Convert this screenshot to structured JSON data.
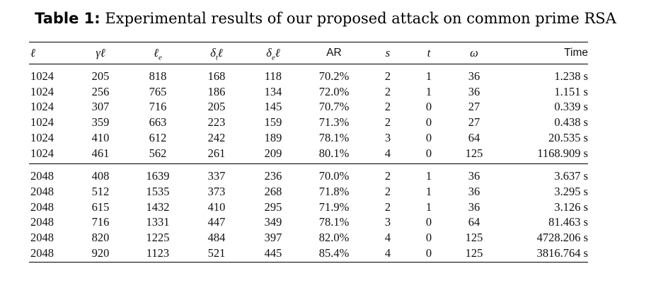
{
  "caption": {
    "label": "Table 1:",
    "text": "Experimental results of our proposed attack on common prime RSA"
  },
  "table": {
    "headers": [
      "ℓ",
      "γℓ",
      "ℓ",
      "δ",
      "δ",
      "AR",
      "s",
      "t",
      "ω",
      "Time"
    ],
    "header_subscripts": [
      "",
      "",
      "e",
      "t",
      "e",
      "",
      "",
      "",
      "",
      ""
    ],
    "header_suffix": [
      "",
      "",
      "",
      "ℓ",
      "ℓ",
      "",
      "",
      "",
      "",
      ""
    ],
    "groups": [
      [
        [
          "1024",
          "205",
          "818",
          "168",
          "118",
          "70.2%",
          "2",
          "1",
          "36",
          "1.238 s"
        ],
        [
          "1024",
          "256",
          "765",
          "186",
          "134",
          "72.0%",
          "2",
          "1",
          "36",
          "1.151 s"
        ],
        [
          "1024",
          "307",
          "716",
          "205",
          "145",
          "70.7%",
          "2",
          "0",
          "27",
          "0.339 s"
        ],
        [
          "1024",
          "359",
          "663",
          "223",
          "159",
          "71.3%",
          "2",
          "0",
          "27",
          "0.438 s"
        ],
        [
          "1024",
          "410",
          "612",
          "242",
          "189",
          "78.1%",
          "3",
          "0",
          "64",
          "20.535 s"
        ],
        [
          "1024",
          "461",
          "562",
          "261",
          "209",
          "80.1%",
          "4",
          "0",
          "125",
          "1168.909 s"
        ]
      ],
      [
        [
          "2048",
          "408",
          "1639",
          "337",
          "236",
          "70.0%",
          "2",
          "1",
          "36",
          "3.637 s"
        ],
        [
          "2048",
          "512",
          "1535",
          "373",
          "268",
          "71.8%",
          "2",
          "1",
          "36",
          "3.295 s"
        ],
        [
          "2048",
          "615",
          "1432",
          "410",
          "295",
          "71.9%",
          "2",
          "1",
          "36",
          "3.126 s"
        ],
        [
          "2048",
          "716",
          "1331",
          "447",
          "349",
          "78.1%",
          "3",
          "0",
          "64",
          "81.463 s"
        ],
        [
          "2048",
          "820",
          "1225",
          "484",
          "397",
          "82.0%",
          "4",
          "0",
          "125",
          "4728.206 s"
        ],
        [
          "2048",
          "920",
          "1123",
          "521",
          "445",
          "85.4%",
          "4",
          "0",
          "125",
          "3816.764 s"
        ]
      ]
    ]
  }
}
